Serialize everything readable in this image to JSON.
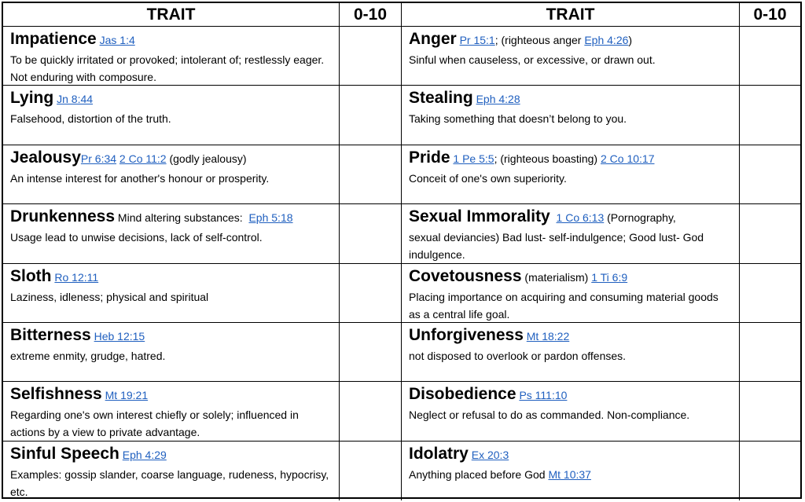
{
  "header": {
    "trait_label": "TRAIT",
    "score_label": "0-10"
  },
  "rows": [
    {
      "left": {
        "name": "Impatience",
        "parts": [
          {
            "t": "ref",
            "text": "Jas 1:4"
          }
        ],
        "desc": "To be quickly irritated or provoked; intolerant of; restlessly eager. Not enduring with composure."
      },
      "right": {
        "name": "Anger",
        "parts": [
          {
            "t": "ref",
            "text": "Pr 15:1"
          },
          {
            "t": "txt",
            "text": "; (righteous anger "
          },
          {
            "t": "ref",
            "text": "Eph 4:26"
          },
          {
            "t": "txt",
            "text": ")"
          }
        ],
        "desc": "Sinful when causeless, or excessive, or drawn out."
      }
    },
    {
      "left": {
        "name": "Lying",
        "parts": [
          {
            "t": "ref",
            "text": "Jn 8:44"
          }
        ],
        "desc": "Falsehood, distortion of the truth."
      },
      "right": {
        "name": "Stealing",
        "parts": [
          {
            "t": "ref",
            "text": "Eph 4:28"
          }
        ],
        "desc": "Taking something that doesn’t belong to you."
      }
    },
    {
      "left": {
        "name": "Jealousy",
        "parts": [
          {
            "t": "ref",
            "text": "Pr 6:34"
          },
          {
            "t": "txt",
            "text": " "
          },
          {
            "t": "ref",
            "text": "2 Co 11:2"
          },
          {
            "t": "txt",
            "text": " (godly jealousy)"
          }
        ],
        "desc": "An intense interest for another's honour or prosperity."
      },
      "right": {
        "name": "Pride",
        "parts": [
          {
            "t": "ref",
            "text": "1 Pe 5:5"
          },
          {
            "t": "txt",
            "text": "; (righteous boasting) "
          },
          {
            "t": "ref",
            "text": "2 Co 10:17"
          }
        ],
        "desc": "Conceit of one's own superiority."
      }
    },
    {
      "left": {
        "name": "Drunkenness",
        "parts": [
          {
            "t": "txt",
            "text": " Mind altering substances:  "
          },
          {
            "t": "ref",
            "text": "Eph 5:18"
          }
        ],
        "desc": "Usage lead to unwise decisions, lack of self-control."
      },
      "right": {
        "name": "Sexual Immorality",
        "parts": [
          {
            "t": "txt",
            "text": "  "
          },
          {
            "t": "ref",
            "text": "1 Co 6:13"
          },
          {
            "t": "txt",
            "text": " (Pornography,"
          }
        ],
        "desc": "sexual deviancies) Bad lust- self-indulgence; Good lust- God indulgence."
      }
    },
    {
      "left": {
        "name": "Sloth",
        "parts": [
          {
            "t": "ref",
            "text": "Ro 12:11"
          }
        ],
        "desc": "Laziness, idleness; physical and spiritual"
      },
      "right": {
        "name": "Covetousness",
        "parts": [
          {
            "t": "txt",
            "text": " (materialism) "
          },
          {
            "t": "ref",
            "text": "1 Ti 6:9"
          }
        ],
        "desc": "Placing importance on acquiring and consuming material goods as a central life goal."
      }
    },
    {
      "left": {
        "name": "Bitterness",
        "parts": [
          {
            "t": "ref",
            "text": "Heb 12:15"
          }
        ],
        "desc": "extreme enmity, grudge, hatred."
      },
      "right": {
        "name": "Unforgiveness",
        "parts": [
          {
            "t": "ref",
            "text": "Mt 18:22"
          }
        ],
        "desc": "not disposed to overlook or pardon offenses."
      }
    },
    {
      "left": {
        "name": "Selfishness",
        "parts": [
          {
            "t": "ref",
            "text": "Mt 19:21"
          }
        ],
        "desc": "Regarding one's own interest chiefly or solely; influenced in actions by a view to private advantage."
      },
      "right": {
        "name": "Disobedience",
        "parts": [
          {
            "t": "ref",
            "text": "Ps 111:10"
          }
        ],
        "desc": "Neglect or refusal to do as commanded. Non-compliance."
      }
    },
    {
      "left": {
        "name": "Sinful Speech",
        "parts": [
          {
            "t": "ref",
            "text": "Eph 4:29"
          }
        ],
        "desc": "Examples: gossip slander, coarse language, rudeness, hypocrisy, etc."
      },
      "right": {
        "name": "Idolatry",
        "parts": [
          {
            "t": "ref",
            "text": "Ex 20:3"
          }
        ],
        "desc": "Anything placed before God ",
        "desc_ref": "Mt 10:37"
      }
    }
  ]
}
